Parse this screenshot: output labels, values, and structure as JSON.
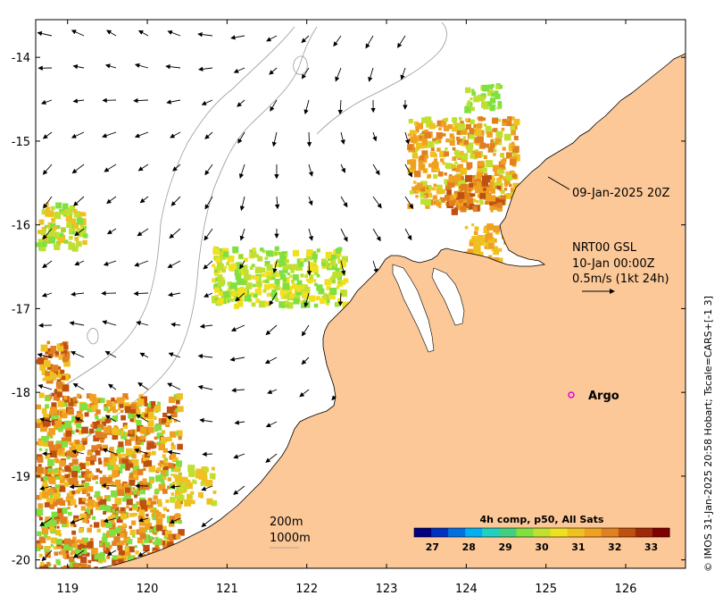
{
  "map": {
    "lon_ticks": [
      "119",
      "120",
      "121",
      "122",
      "123",
      "124",
      "125",
      "126"
    ],
    "lat_ticks": [
      "-14",
      "-15",
      "-16",
      "-17",
      "-18",
      "-19",
      "-20"
    ],
    "lon_range": [
      118.6,
      126.75
    ],
    "lat_range": [
      -20.1,
      -13.55
    ]
  },
  "annotations": {
    "timestamp": "09-Jan-2025 20Z",
    "model_line1": "NRT00 GSL",
    "model_line2": "10-Jan 00:00Z",
    "scale_line": "0.5m/s (1kt 24h)",
    "argo_label": "Argo",
    "depth_200": "200m",
    "depth_1000": "1000m",
    "credit": "© IMOS 31-Jan-2025 20:58 Hobart; Tscale=CARS+[-1 3]"
  },
  "colorbar": {
    "title": "4h comp, p50, All Sats",
    "labels": [
      "27",
      "28",
      "29",
      "30",
      "31",
      "32",
      "33"
    ],
    "min": 26.5,
    "max": 33.5,
    "colors": [
      "#000080",
      "#0030c0",
      "#0070e0",
      "#00b0f0",
      "#20d0c0",
      "#40d080",
      "#80e040",
      "#c0e030",
      "#f0e020",
      "#f0c020",
      "#f0a020",
      "#e08020",
      "#c05010",
      "#a02808",
      "#800000"
    ]
  },
  "colors": {
    "land": "#fcc898",
    "ocean": "#ffffff",
    "argo": "#e000e0",
    "isobath": "#999999"
  }
}
